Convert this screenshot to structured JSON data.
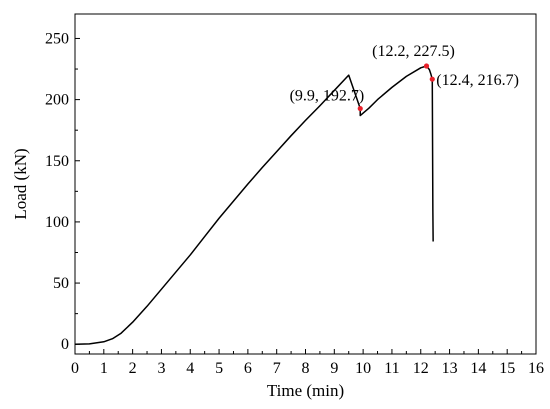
{
  "chart_data": {
    "type": "line",
    "title": "",
    "xlabel": "Time (min)",
    "ylabel": "Load (kN)",
    "xlim": [
      0,
      16
    ],
    "ylim": [
      -8,
      270
    ],
    "xticks": [
      0,
      1,
      2,
      3,
      4,
      5,
      6,
      7,
      8,
      9,
      10,
      11,
      12,
      13,
      14,
      15,
      16
    ],
    "yticks": [
      0,
      50,
      100,
      150,
      200,
      250
    ],
    "grid": false,
    "legend": "none",
    "series": [
      {
        "line_color": "#000000",
        "x": [
          0,
          0.5,
          1.0,
          1.3,
          1.6,
          2.0,
          2.5,
          3.0,
          3.5,
          4.0,
          4.5,
          5.0,
          5.5,
          6.0,
          6.5,
          7.0,
          7.5,
          8.0,
          8.5,
          9.0,
          9.5,
          9.9,
          9.9,
          10.2,
          10.5,
          11.0,
          11.5,
          12.0,
          12.2,
          12.3,
          12.35,
          12.4,
          12.42,
          12.43
        ],
        "y": [
          0,
          0.3,
          2.0,
          4.5,
          9.0,
          18.0,
          31.0,
          45.0,
          59.0,
          73.0,
          88.0,
          103.0,
          117.0,
          131.0,
          144.5,
          157.5,
          170.5,
          183.0,
          195.0,
          207.5,
          220.0,
          192.7,
          187.0,
          193.0,
          200.0,
          210.0,
          219.0,
          226.0,
          227.5,
          224.5,
          221.0,
          216.7,
          110.0,
          84.0
        ]
      }
    ],
    "annotations": [
      {
        "x": 9.9,
        "y": 192.7,
        "label": "(9.9, 192.7)",
        "marker_color": "#e8202a",
        "anchor": "end"
      },
      {
        "x": 12.2,
        "y": 227.5,
        "label": "(12.2, 227.5)",
        "marker_color": "#e8202a",
        "anchor": "middle"
      },
      {
        "x": 12.4,
        "y": 216.7,
        "label": "(12.4, 216.7)",
        "marker_color": "#e8202a",
        "anchor": "start"
      }
    ]
  }
}
